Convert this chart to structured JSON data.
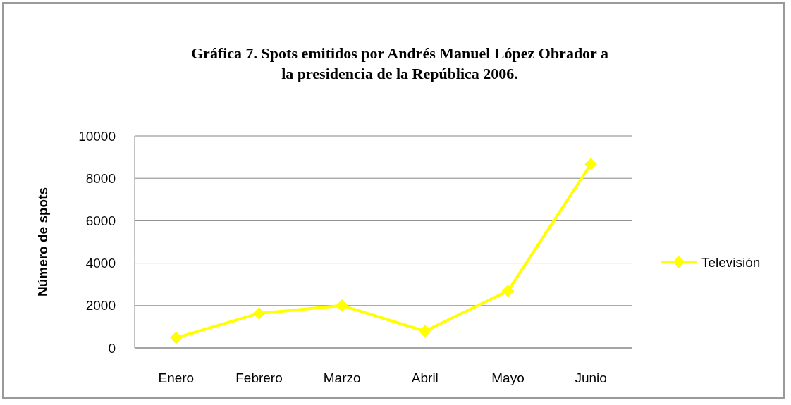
{
  "chart_data": {
    "type": "line",
    "title": "Gráfica 7. Spots emitidos por  Andrés Manuel López Obrador a la presidencia de la República 2006.",
    "ylabel": "Número de spots",
    "categories": [
      "Enero",
      "Febrero",
      "Marzo",
      "Abril",
      "Mayo",
      "Junio"
    ],
    "series": [
      {
        "name": "Televisión",
        "color": "#ffff00",
        "values": [
          480,
          1630,
          2000,
          790,
          2690,
          8670
        ]
      }
    ],
    "ylim": [
      0,
      10000
    ],
    "yticks": [
      0,
      2000,
      4000,
      6000,
      8000,
      10000
    ],
    "grid": "y",
    "legend": "right",
    "marker": "diamond",
    "line_style": "solid"
  }
}
